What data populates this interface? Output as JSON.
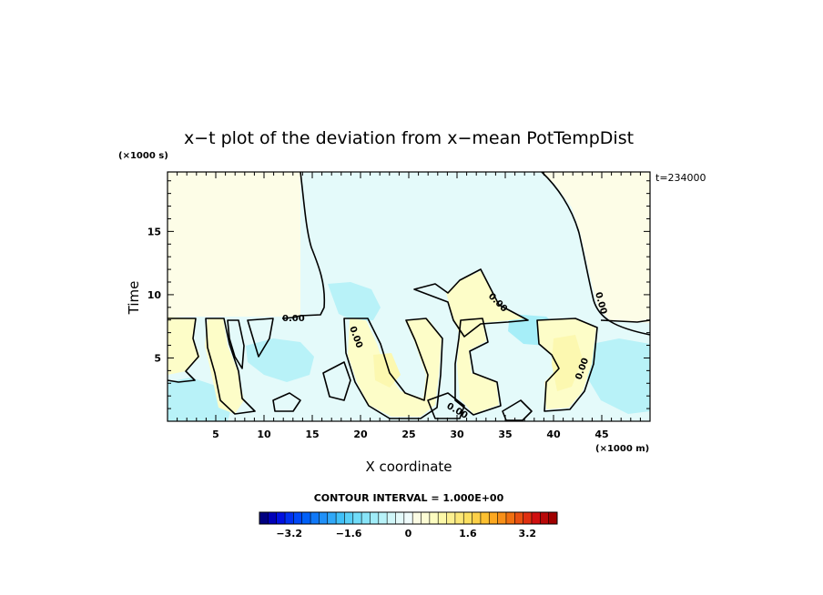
{
  "chart_data": {
    "type": "heatmap",
    "title": "x−t plot of the deviation from x−mean PotTempDist",
    "xlabel": "X coordinate",
    "ylabel": "Time",
    "x_unit": "(×1000 m)",
    "y_unit": "(×1000 s)",
    "time_label": "t=234000",
    "xlim": [
      0,
      50
    ],
    "ylim": [
      0,
      19.7
    ],
    "x_ticks": [
      5,
      10,
      15,
      20,
      25,
      30,
      35,
      40,
      45
    ],
    "y_ticks": [
      5,
      10,
      15
    ],
    "contour_interval_text": "CONTOUR INTERVAL = 1.000E+00",
    "contour_labels": [
      "0.00",
      "0.00",
      "0.00",
      "0.00",
      "0.00",
      "0.00"
    ],
    "colorbar": {
      "range": [
        -4,
        4
      ],
      "ticks": [
        "−3.2",
        "−1.6",
        "0",
        "1.6",
        "3.2"
      ],
      "tick_values": [
        -3.2,
        -1.6,
        0,
        1.6,
        3.2
      ],
      "colors": [
        "#000080",
        "#0000b8",
        "#0010e0",
        "#0030f0",
        "#0048f8",
        "#0060f8",
        "#1078f8",
        "#2090f8",
        "#30a8f8",
        "#40c0f8",
        "#58d0f8",
        "#70dcf8",
        "#88e4f8",
        "#a0ecf8",
        "#b8f2f8",
        "#d0f6f8",
        "#e4fafa",
        "#f0fcfc",
        "#fcfce4",
        "#fcfcd4",
        "#fcfcc0",
        "#fcf8a8",
        "#fcf090",
        "#fce878",
        "#fce060",
        "#fcd048",
        "#fcc030",
        "#fca820",
        "#f89018",
        "#f07010",
        "#e85010",
        "#e03010",
        "#d01010",
        "#b80808",
        "#a00000"
      ]
    },
    "field_colors": {
      "near_zero_positive": "#fdfde7",
      "near_zero_negative": "#e4fafa",
      "positive": "#fdfdc8",
      "negative": "#b8f2f8",
      "more_negative": "#a6eef8"
    }
  }
}
